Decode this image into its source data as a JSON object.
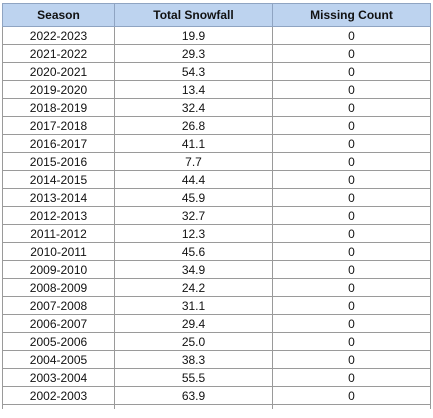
{
  "table": {
    "headers": [
      "Season",
      "Total Snowfall",
      "Missing Count"
    ],
    "rows": [
      [
        "2022-2023",
        "19.9",
        "0"
      ],
      [
        "2021-2022",
        "29.3",
        "0"
      ],
      [
        "2020-2021",
        "54.3",
        "0"
      ],
      [
        "2019-2020",
        "13.4",
        "0"
      ],
      [
        "2018-2019",
        "32.4",
        "0"
      ],
      [
        "2017-2018",
        "26.8",
        "0"
      ],
      [
        "2016-2017",
        "41.1",
        "0"
      ],
      [
        "2015-2016",
        "7.7",
        "0"
      ],
      [
        "2014-2015",
        "44.4",
        "0"
      ],
      [
        "2013-2014",
        "45.9",
        "0"
      ],
      [
        "2012-2013",
        "32.7",
        "0"
      ],
      [
        "2011-2012",
        "12.3",
        "0"
      ],
      [
        "2010-2011",
        "45.6",
        "0"
      ],
      [
        "2009-2010",
        "34.9",
        "0"
      ],
      [
        "2008-2009",
        "24.2",
        "0"
      ],
      [
        "2007-2008",
        "31.1",
        "0"
      ],
      [
        "2006-2007",
        "29.4",
        "0"
      ],
      [
        "2005-2006",
        "25.0",
        "0"
      ],
      [
        "2004-2005",
        "38.3",
        "0"
      ],
      [
        "2003-2004",
        "55.5",
        "0"
      ],
      [
        "2002-2003",
        "63.9",
        "0"
      ]
    ]
  },
  "colors": {
    "header_background": "#bdd3ef",
    "cell_border": "#9a9a9a"
  }
}
